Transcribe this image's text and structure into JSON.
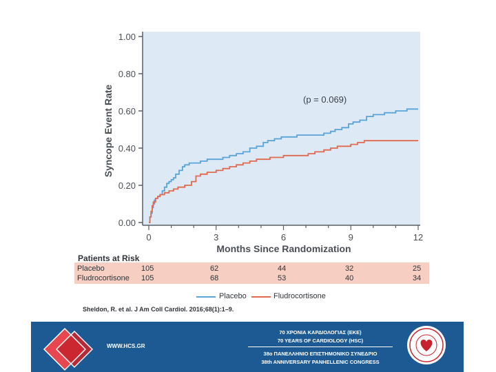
{
  "chart_data": {
    "type": "line",
    "xlabel": "Months Since Randomization",
    "ylabel": "Syncope Event Rate",
    "xlim": [
      0,
      12
    ],
    "ylim": [
      0,
      1
    ],
    "x_ticks": [
      "0",
      "3",
      "6",
      "9",
      "12"
    ],
    "y_ticks": [
      "0.00",
      "0.20",
      "0.40",
      "0.60",
      "0.80",
      "1.00"
    ],
    "annotation": "(p = 0.069)",
    "series": [
      {
        "name": "Placebo",
        "color": "#5aa3d6",
        "x": [
          0.0,
          0.05,
          0.1,
          0.15,
          0.2,
          0.25,
          0.3,
          0.4,
          0.5,
          0.6,
          0.7,
          0.8,
          0.9,
          1.0,
          1.1,
          1.2,
          1.35,
          1.5,
          1.6,
          1.8,
          2.0,
          2.3,
          2.6,
          3.0,
          3.3,
          3.6,
          3.9,
          4.2,
          4.5,
          4.8,
          5.1,
          5.3,
          5.6,
          5.9,
          6.2,
          6.6,
          7.0,
          7.4,
          7.8,
          8.1,
          8.3,
          8.6,
          8.9,
          9.1,
          9.4,
          9.7,
          10.0,
          10.5,
          11.0,
          11.5,
          12.0
        ],
        "y": [
          0.0,
          0.03,
          0.05,
          0.08,
          0.1,
          0.12,
          0.13,
          0.14,
          0.15,
          0.17,
          0.19,
          0.21,
          0.22,
          0.23,
          0.24,
          0.26,
          0.28,
          0.3,
          0.31,
          0.32,
          0.32,
          0.33,
          0.34,
          0.34,
          0.35,
          0.36,
          0.37,
          0.38,
          0.4,
          0.41,
          0.43,
          0.44,
          0.45,
          0.46,
          0.46,
          0.47,
          0.47,
          0.47,
          0.48,
          0.49,
          0.5,
          0.51,
          0.53,
          0.54,
          0.55,
          0.57,
          0.58,
          0.59,
          0.6,
          0.61,
          0.61
        ]
      },
      {
        "name": "Fludrocortisone",
        "color": "#e0694e",
        "x": [
          0.0,
          0.05,
          0.1,
          0.15,
          0.2,
          0.3,
          0.4,
          0.5,
          0.7,
          0.9,
          1.1,
          1.3,
          1.6,
          1.9,
          2.1,
          2.3,
          2.6,
          3.0,
          3.3,
          3.6,
          3.9,
          4.2,
          4.5,
          4.8,
          5.1,
          5.4,
          5.7,
          6.0,
          6.4,
          6.8,
          7.1,
          7.4,
          7.8,
          8.1,
          8.4,
          8.7,
          9.0,
          9.3,
          9.6,
          10.0,
          11.0,
          12.0
        ],
        "y": [
          0.0,
          0.03,
          0.06,
          0.09,
          0.11,
          0.13,
          0.14,
          0.15,
          0.16,
          0.17,
          0.18,
          0.19,
          0.2,
          0.22,
          0.25,
          0.26,
          0.27,
          0.28,
          0.29,
          0.3,
          0.31,
          0.32,
          0.33,
          0.34,
          0.34,
          0.35,
          0.35,
          0.36,
          0.36,
          0.36,
          0.37,
          0.38,
          0.39,
          0.4,
          0.41,
          0.41,
          0.42,
          0.43,
          0.44,
          0.44,
          0.44,
          0.44
        ]
      }
    ],
    "risk_table": {
      "title": "Patients at Risk",
      "rows": [
        {
          "label": "Placebo",
          "values": [
            "105",
            "62",
            "44",
            "32",
            "25"
          ]
        },
        {
          "label": "Fludrocortisone",
          "values": [
            "105",
            "68",
            "53",
            "40",
            "34"
          ]
        }
      ]
    },
    "legend": [
      "Placebo",
      "Fludrocortisone"
    ]
  },
  "citation": "Sheldon, R. et al. J Am Coll Cardiol. 2016;68(1):1–9.",
  "banner": {
    "url": "WWW.HCS.GR",
    "line1": "70 ΧΡΟΝΙΑ ΚΑΡΔΙΟΛΟΓΙΑΣ (ΕΚΕ)",
    "line2": "70 YEARS OF CARDIOLOGY (HSC)",
    "line3": "38ο ΠΑΝΕΛΛΗΝΙΟ ΕΠΙΣΤΗΜΟΝΙΚΟ ΣΥΝΕΔΡΙΟ",
    "line4": "38th ANNIVERSARY PANHELLENIC CONGRESS",
    "background": "#1d5a93"
  }
}
